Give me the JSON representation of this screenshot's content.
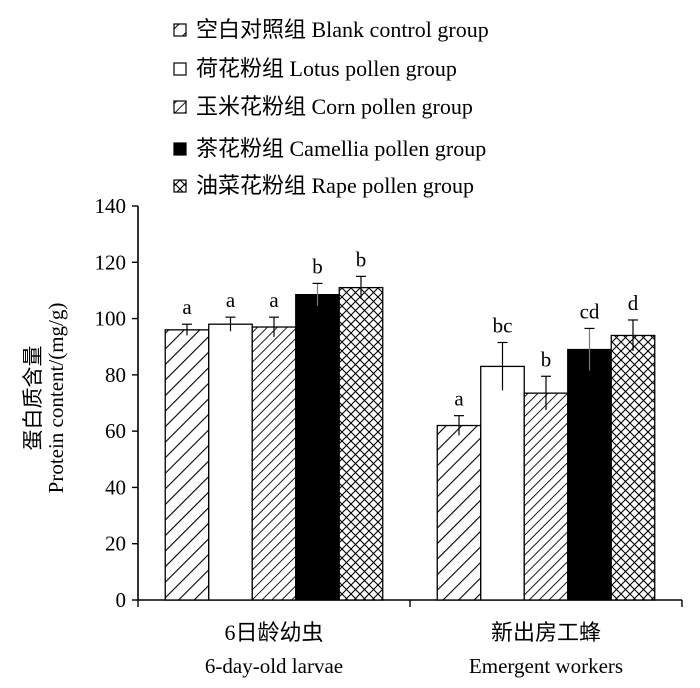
{
  "chart_data": {
    "type": "bar",
    "ylabel": "蛋白质含量",
    "ylabel2": "Protein content/(mg/g)",
    "ylim": [
      0,
      140
    ],
    "yticks": [
      0,
      20,
      40,
      60,
      80,
      100,
      120,
      140
    ],
    "grid": false,
    "legend_position": "top",
    "categories": [
      {
        "label_cn": "6日龄幼虫",
        "label_en": "6-day-old larvae"
      },
      {
        "label_cn": "新出房工蜂",
        "label_en": "Emergent workers"
      }
    ],
    "series": [
      {
        "name": "空白对照组 Blank control group",
        "pattern": "diag-wide",
        "values": [
          96,
          62
        ],
        "errors": [
          2,
          3.5
        ],
        "letters": [
          "a",
          "a"
        ]
      },
      {
        "name": "荷花粉组 Lotus pollen group",
        "pattern": "white",
        "values": [
          98,
          83
        ],
        "errors": [
          2.5,
          8.5
        ],
        "letters": [
          "a",
          "bc"
        ]
      },
      {
        "name": "玉米花粉组 Corn pollen group",
        "pattern": "diag-narrow",
        "values": [
          97,
          73.5
        ],
        "errors": [
          3.5,
          6
        ],
        "letters": [
          "a",
          "b"
        ]
      },
      {
        "name": "茶花粉组 Camellia pollen group",
        "pattern": "black",
        "values": [
          108.5,
          89
        ],
        "errors": [
          4,
          7.5
        ],
        "letters": [
          "b",
          "cd"
        ]
      },
      {
        "name": "油菜花粉组 Rape pollen group",
        "pattern": "crosshatch",
        "values": [
          111,
          94
        ],
        "errors": [
          4,
          5.5
        ],
        "letters": [
          "b",
          "d"
        ]
      }
    ]
  }
}
